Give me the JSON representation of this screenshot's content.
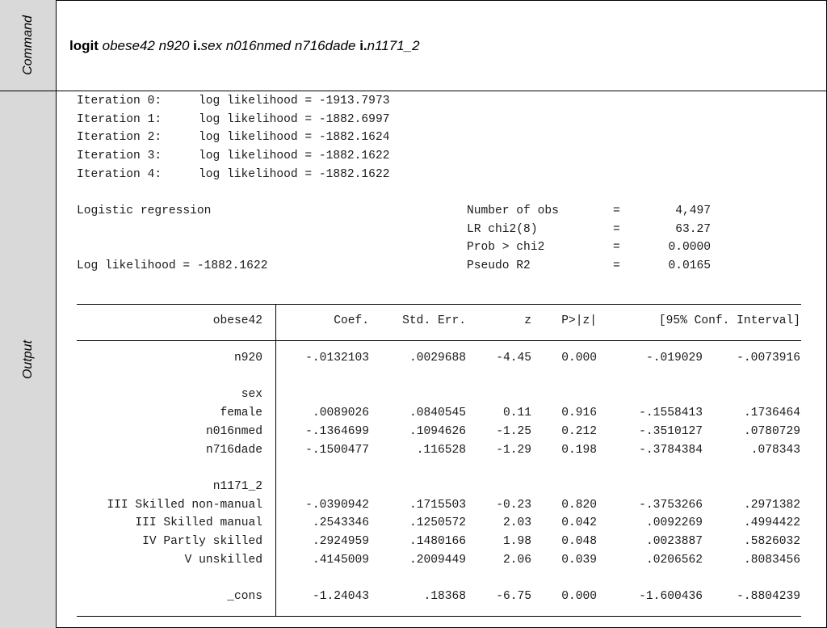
{
  "side_labels": {
    "command": "Command",
    "output": "Output"
  },
  "command": {
    "parts": [
      {
        "text": "logit",
        "style": "kw"
      },
      {
        "text": " ",
        "style": "arg"
      },
      {
        "text": "obese42 n920 ",
        "style": "arg"
      },
      {
        "text": "i.",
        "style": "kw"
      },
      {
        "text": "sex n016nmed n716dade ",
        "style": "arg"
      },
      {
        "text": "i.",
        "style": "kw"
      },
      {
        "text": "n1171_2",
        "style": "arg"
      }
    ]
  },
  "iterations": [
    {
      "label": "Iteration 0:",
      "text": "log likelihood = -1913.7973"
    },
    {
      "label": "Iteration 1:",
      "text": "log likelihood = -1882.6997"
    },
    {
      "label": "Iteration 2:",
      "text": "log likelihood = -1882.1624"
    },
    {
      "label": "Iteration 3:",
      "text": "log likelihood = -1882.1622"
    },
    {
      "label": "Iteration 4:",
      "text": "log likelihood = -1882.1622"
    }
  ],
  "summary": {
    "model": "Logistic regression",
    "loglik": "Log likelihood = -1882.1622",
    "stats": [
      {
        "name": "Number of obs",
        "eq": "=",
        "value": "4,497"
      },
      {
        "name": "LR chi2(8)",
        "eq": "=",
        "value": "63.27"
      },
      {
        "name": "Prob > chi2",
        "eq": "=",
        "value": "0.0000"
      },
      {
        "name": "Pseudo R2",
        "eq": "=",
        "value": "0.0165"
      }
    ]
  },
  "table": {
    "header": {
      "var": "obese42",
      "coef": "Coef.",
      "se": "Std. Err.",
      "z": "z",
      "p": "P>|z|",
      "ci": "[95% Conf. Interval]"
    },
    "rows": [
      {
        "var": "n920",
        "coef": "-.0132103",
        "se": ".0029688",
        "z": "-4.45",
        "p": "0.000",
        "lo": "-.019029",
        "hi": "-.0073916"
      },
      {
        "var": "",
        "coef": "",
        "se": "",
        "z": "",
        "p": "",
        "lo": "",
        "hi": ""
      },
      {
        "var": "sex",
        "coef": "",
        "se": "",
        "z": "",
        "p": "",
        "lo": "",
        "hi": ""
      },
      {
        "var": "female",
        "coef": ".0089026",
        "se": ".0840545",
        "z": "0.11",
        "p": "0.916",
        "lo": "-.1558413",
        "hi": ".1736464"
      },
      {
        "var": "n016nmed",
        "coef": "-.1364699",
        "se": ".1094626",
        "z": "-1.25",
        "p": "0.212",
        "lo": "-.3510127",
        "hi": ".0780729"
      },
      {
        "var": "n716dade",
        "coef": "-.1500477",
        "se": ".116528",
        "z": "-1.29",
        "p": "0.198",
        "lo": "-.3784384",
        "hi": ".078343"
      },
      {
        "var": "",
        "coef": "",
        "se": "",
        "z": "",
        "p": "",
        "lo": "",
        "hi": ""
      },
      {
        "var": "n1171_2",
        "coef": "",
        "se": "",
        "z": "",
        "p": "",
        "lo": "",
        "hi": ""
      },
      {
        "var": "III Skilled non-manual",
        "coef": "-.0390942",
        "se": ".1715503",
        "z": "-0.23",
        "p": "0.820",
        "lo": "-.3753266",
        "hi": ".2971382"
      },
      {
        "var": "III Skilled manual",
        "coef": ".2543346",
        "se": ".1250572",
        "z": "2.03",
        "p": "0.042",
        "lo": ".0092269",
        "hi": ".4994422"
      },
      {
        "var": "IV Partly skilled",
        "coef": ".2924959",
        "se": ".1480166",
        "z": "1.98",
        "p": "0.048",
        "lo": ".0023887",
        "hi": ".5826032"
      },
      {
        "var": "V unskilled",
        "coef": ".4145009",
        "se": ".2009449",
        "z": "2.06",
        "p": "0.039",
        "lo": ".0206562",
        "hi": ".8083456"
      },
      {
        "var": "",
        "coef": "",
        "se": "",
        "z": "",
        "p": "",
        "lo": "",
        "hi": ""
      },
      {
        "var": "_cons",
        "coef": "-1.24043",
        "se": ".18368",
        "z": "-6.75",
        "p": "0.000",
        "lo": "-1.600436",
        "hi": "-.8804239"
      }
    ]
  }
}
